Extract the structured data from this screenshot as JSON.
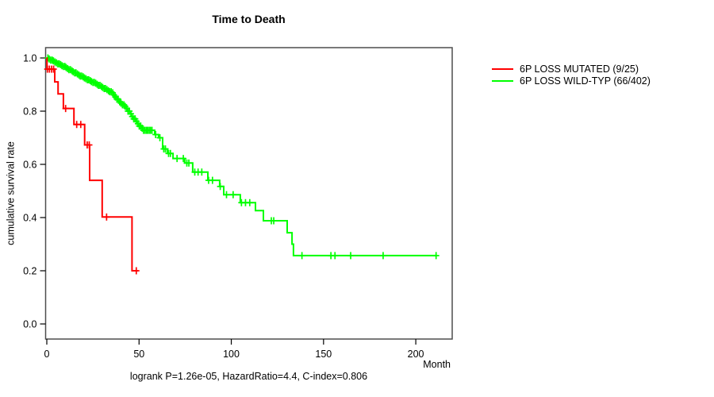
{
  "page": {
    "background": "#ffffff"
  },
  "chart_data": {
    "type": "line",
    "chart_kind": "kaplan-meier-step",
    "title": "Time to Death",
    "xlabel": "Month",
    "ylabel": "cumulative survival rate",
    "footer": "logrank P=1.26e-05, HazardRatio=4.4, C-index=0.806",
    "xlim": [
      0,
      220
    ],
    "ylim": [
      0.0,
      1.0
    ],
    "xticks": [
      0,
      50,
      100,
      150,
      200
    ],
    "yticks": [
      0.0,
      0.2,
      0.4,
      0.6,
      0.8,
      1.0
    ],
    "ytick_labels": [
      "0.0",
      "0.2",
      "0.4",
      "0.6",
      "0.8",
      "1.0"
    ],
    "grid": false,
    "legend_position": "right-outside",
    "axis_color": "#000000",
    "series": [
      {
        "name": "6P LOSS MUTATED (9/25)",
        "color": "#ff0000",
        "start_value": 1.0,
        "steps": [
          [
            0.1,
            0.958
          ],
          [
            4.3,
            0.91
          ],
          [
            6.1,
            0.865
          ],
          [
            9.0,
            0.81
          ],
          [
            14.7,
            0.75
          ],
          [
            20.5,
            0.673
          ],
          [
            23.2,
            0.54
          ],
          [
            30.0,
            0.402
          ],
          [
            46.2,
            0.2
          ]
        ],
        "end_month": 49.4,
        "censor_months": [
          0.3,
          1.4,
          2.6,
          3.7,
          10.2,
          16.2,
          18.4,
          21.9,
          23.0,
          32.4,
          48.5
        ]
      },
      {
        "name": "6P LOSS WILD-TYP (66/402)",
        "color": "#00ff00",
        "start_value": 1.0,
        "steps": [
          [
            1,
            0.996
          ],
          [
            2,
            0.992
          ],
          [
            3,
            0.989
          ],
          [
            4,
            0.985
          ],
          [
            5,
            0.982
          ],
          [
            6,
            0.978
          ],
          [
            7,
            0.975
          ],
          [
            8,
            0.971
          ],
          [
            9,
            0.968
          ],
          [
            10,
            0.964
          ],
          [
            11,
            0.96
          ],
          [
            12,
            0.956
          ],
          [
            13,
            0.952
          ],
          [
            14,
            0.948
          ],
          [
            15,
            0.944
          ],
          [
            16,
            0.94
          ],
          [
            17,
            0.936
          ],
          [
            18,
            0.932
          ],
          [
            19,
            0.929
          ],
          [
            20,
            0.925
          ],
          [
            21,
            0.922
          ],
          [
            22,
            0.918
          ],
          [
            23,
            0.915
          ],
          [
            24,
            0.911
          ],
          [
            25,
            0.908
          ],
          [
            26,
            0.905
          ],
          [
            27,
            0.901
          ],
          [
            28,
            0.897
          ],
          [
            29,
            0.893
          ],
          [
            30,
            0.889
          ],
          [
            31,
            0.885
          ],
          [
            32,
            0.881
          ],
          [
            33,
            0.877
          ],
          [
            34,
            0.873
          ],
          [
            35,
            0.869
          ],
          [
            36,
            0.861
          ],
          [
            37,
            0.853
          ],
          [
            38,
            0.845
          ],
          [
            39,
            0.836
          ],
          [
            40,
            0.83
          ],
          [
            41,
            0.824
          ],
          [
            42,
            0.818
          ],
          [
            43,
            0.811
          ],
          [
            44,
            0.8
          ],
          [
            45,
            0.79
          ],
          [
            46,
            0.78
          ],
          [
            47,
            0.771
          ],
          [
            48,
            0.762
          ],
          [
            49,
            0.753
          ],
          [
            50,
            0.744
          ],
          [
            51,
            0.736
          ],
          [
            52,
            0.728
          ],
          [
            58.5,
            0.712
          ],
          [
            60.6,
            0.7
          ],
          [
            62.8,
            0.658
          ],
          [
            65.4,
            0.641
          ],
          [
            68.4,
            0.622
          ],
          [
            74.8,
            0.605
          ],
          [
            79.1,
            0.571
          ],
          [
            87.3,
            0.54
          ],
          [
            93.7,
            0.517
          ],
          [
            95.9,
            0.486
          ],
          [
            104.9,
            0.456
          ],
          [
            113.1,
            0.426
          ],
          [
            117.4,
            0.388
          ],
          [
            130.3,
            0.343
          ],
          [
            132.9,
            0.3
          ],
          [
            133.7,
            0.257
          ]
        ],
        "end_month": 211.5,
        "censor_months": [
          0.6,
          1.3,
          2.1,
          2.9,
          3.6,
          4.4,
          5.2,
          6.0,
          6.7,
          7.5,
          8.2,
          9.0,
          9.8,
          10.5,
          11.3,
          12.0,
          12.8,
          13.6,
          14.3,
          15.1,
          15.8,
          16.6,
          17.4,
          18.1,
          18.9,
          19.7,
          20.4,
          21.2,
          22.0,
          22.7,
          23.5,
          24.2,
          25.0,
          25.8,
          26.5,
          27.3,
          28.0,
          28.8,
          29.6,
          30.3,
          31.1,
          31.8,
          32.6,
          33.4,
          34.1,
          34.9,
          35.7,
          36.4,
          37.2,
          38.0,
          38.7,
          39.5,
          40.2,
          41.0,
          41.8,
          42.5,
          43.3,
          44.0,
          44.8,
          45.6,
          46.3,
          47.1,
          47.9,
          48.6,
          49.4,
          50.1,
          50.9,
          51.7,
          52.4,
          53.2,
          54.0,
          54.7,
          55.5,
          56.2,
          57.0,
          59.0,
          61.3,
          63.4,
          64.3,
          66.0,
          67.0,
          70.6,
          74.0,
          75.9,
          77.0,
          80.2,
          82.0,
          84.0,
          87.7,
          89.8,
          94.0,
          97.4,
          101.0,
          105.5,
          107.7,
          110.0,
          121.7,
          123.0,
          138.3,
          154.0,
          156.2,
          164.7,
          182.3,
          211.0
        ]
      }
    ]
  }
}
